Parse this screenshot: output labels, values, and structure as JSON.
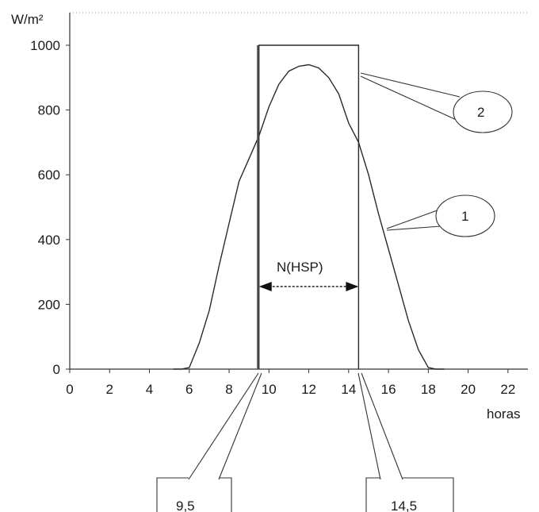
{
  "chart_data": {
    "type": "line",
    "ylabel": "W/m²",
    "xlabel": "horas",
    "xlim": [
      0,
      23
    ],
    "ylim": [
      0,
      1000
    ],
    "x_ticks": [
      0,
      2,
      4,
      6,
      8,
      10,
      12,
      14,
      16,
      18,
      20,
      22
    ],
    "y_ticks": [
      0,
      200,
      400,
      600,
      800,
      1000
    ],
    "x_tick_labels": [
      "0",
      "2",
      "4",
      "6",
      "8",
      "10",
      "12",
      "14",
      "16",
      "18",
      "20",
      "22"
    ],
    "y_tick_labels": [
      "0",
      "200",
      "400",
      "600",
      "800",
      "1000"
    ],
    "series": [
      {
        "x": [
          5.2,
          5.6,
          6.0,
          6.5,
          7.0,
          7.5,
          8.0,
          8.5,
          9.0,
          9.5,
          10.0,
          10.5,
          11.0,
          11.5,
          12.0,
          12.5,
          13.0,
          13.5,
          14.0,
          14.5,
          15.0,
          15.5,
          16.0,
          16.5,
          17.0,
          17.5,
          18.0,
          18.4,
          18.8
        ],
        "y": [
          0,
          0,
          5,
          80,
          180,
          320,
          450,
          580,
          650,
          720,
          810,
          880,
          920,
          935,
          940,
          930,
          900,
          850,
          760,
          700,
          600,
          480,
          370,
          260,
          150,
          60,
          5,
          0,
          0
        ]
      },
      {
        "x": [
          9.5,
          9.5,
          14.5,
          14.5
        ],
        "y": [
          0,
          1000,
          1000,
          0
        ]
      }
    ],
    "annotations": {
      "curve_label": "1",
      "rect_label": "2",
      "hsp_label": "N(HSP)",
      "start_value": "9,5",
      "end_value": "14,5"
    }
  }
}
